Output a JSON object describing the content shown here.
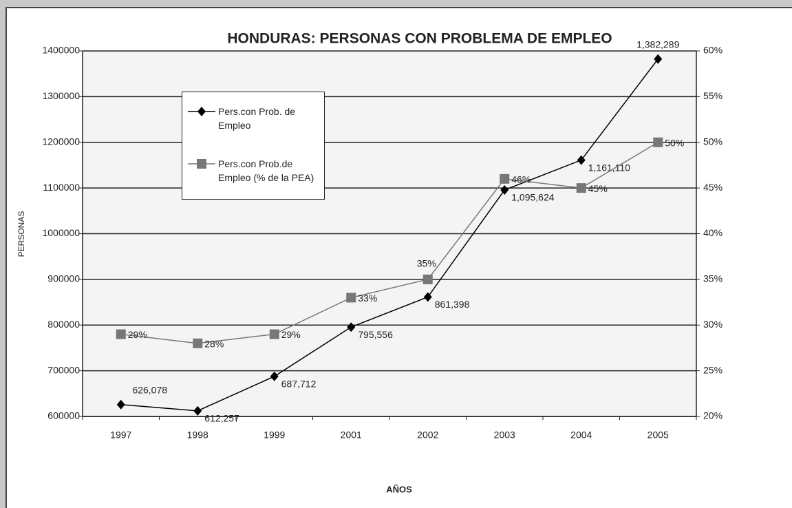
{
  "chart_data": {
    "type": "line",
    "title": "HONDURAS: PERSONAS CON PROBLEMA DE EMPLEO",
    "xlabel": "AÑOS",
    "ylabel": "PERSONAS",
    "categories": [
      "1997",
      "1998",
      "1999",
      "2001",
      "2002",
      "2003",
      "2004",
      "2005"
    ],
    "ylim": [
      600000,
      1400000
    ],
    "yticks": [
      600000,
      700000,
      800000,
      900000,
      1000000,
      1100000,
      1200000,
      1300000,
      1400000
    ],
    "y2lim": [
      20,
      60
    ],
    "y2ticks": [
      {
        "value": 20,
        "label": "20%"
      },
      {
        "value": 25,
        "label": "25%"
      },
      {
        "value": 30,
        "label": "30%"
      },
      {
        "value": 35,
        "label": "35%"
      },
      {
        "value": 40,
        "label": "40%"
      },
      {
        "value": 45,
        "label": "45%"
      },
      {
        "value": 50,
        "label": "50%"
      },
      {
        "value": 55,
        "label": "55%"
      },
      {
        "value": 60,
        "label": "60%"
      }
    ],
    "grid": true,
    "legend": "upper left",
    "series": [
      {
        "name": "Pers.con Prob. de Empleo",
        "color": "#000000",
        "marker": "diamond",
        "values": [
          626078,
          612257,
          687712,
          795556,
          861398,
          1095624,
          1161110,
          1382289
        ],
        "value_labels": [
          "626,078",
          "612,257",
          "687,712",
          "795,556",
          "861,398",
          "1,095,624",
          "1,161,110",
          "1,382,289"
        ]
      },
      {
        "name": "Pers.con Prob.de Empleo (% de la PEA)",
        "color": "#777777",
        "marker": "square",
        "axis": "y2",
        "values": [
          29,
          28,
          29,
          33,
          35,
          46,
          45,
          50
        ],
        "value_labels": [
          "29%",
          "28%",
          "29%",
          "33%",
          "35%",
          "46%",
          "45%",
          "50%"
        ]
      }
    ]
  }
}
